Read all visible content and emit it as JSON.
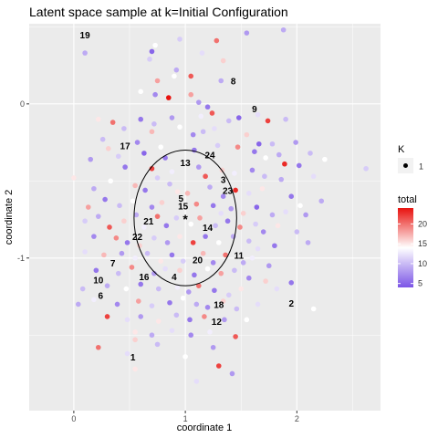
{
  "chart_data": {
    "type": "scatter",
    "title": "Latent space sample at k=Initial Configuration",
    "xlabel": "coordinate 1",
    "ylabel": "coordinate 2",
    "xlim": [
      -0.4,
      2.75
    ],
    "ylim": [
      -1.99,
      0.52
    ],
    "x_ticks": [
      0,
      1,
      2
    ],
    "x_tick_labels": [
      "0",
      "1",
      "2"
    ],
    "y_ticks": [
      0,
      -1
    ],
    "y_tick_labels": [
      "0",
      "-1"
    ],
    "grid": true,
    "ellipse": {
      "cx": 1.0,
      "cy": -0.74,
      "rx": 0.46,
      "ry": 0.44
    },
    "center_marker": {
      "x": 1.0,
      "y": -0.74,
      "label": "*"
    },
    "legend_k": {
      "title": "K",
      "entries": [
        "1"
      ]
    },
    "legend_total": {
      "title": "total",
      "ticks": [
        20,
        15,
        10,
        5
      ],
      "min": 4,
      "max": 24,
      "colors": {
        "low": "#7b55e6",
        "mid": "#ffffff",
        "high": "#e8120e"
      }
    },
    "labels": [
      {
        "text": "19",
        "x": 0.1,
        "y": 0.45
      },
      {
        "text": "8",
        "x": 1.43,
        "y": 0.15
      },
      {
        "text": "9",
        "x": 1.62,
        "y": -0.03
      },
      {
        "text": "17",
        "x": 0.46,
        "y": -0.27
      },
      {
        "text": "24",
        "x": 1.22,
        "y": -0.33
      },
      {
        "text": "13",
        "x": 1.0,
        "y": -0.38
      },
      {
        "text": "3",
        "x": 1.34,
        "y": -0.49
      },
      {
        "text": "23",
        "x": 1.38,
        "y": -0.56
      },
      {
        "text": "5",
        "x": 0.96,
        "y": -0.61
      },
      {
        "text": "15",
        "x": 0.98,
        "y": -0.66
      },
      {
        "text": "21",
        "x": 0.67,
        "y": -0.76
      },
      {
        "text": "14",
        "x": 1.2,
        "y": -0.8
      },
      {
        "text": "22",
        "x": 0.57,
        "y": -0.86
      },
      {
        "text": "11",
        "x": 1.48,
        "y": -0.98
      },
      {
        "text": "20",
        "x": 1.11,
        "y": -1.01
      },
      {
        "text": "7",
        "x": 0.35,
        "y": -1.03
      },
      {
        "text": "16",
        "x": 0.63,
        "y": -1.12
      },
      {
        "text": "4",
        "x": 0.9,
        "y": -1.12
      },
      {
        "text": "10",
        "x": 0.22,
        "y": -1.14
      },
      {
        "text": "6",
        "x": 0.24,
        "y": -1.24
      },
      {
        "text": "2",
        "x": 1.95,
        "y": -1.29
      },
      {
        "text": "18",
        "x": 1.3,
        "y": -1.3
      },
      {
        "text": "12",
        "x": 1.28,
        "y": -1.41
      },
      {
        "text": "1",
        "x": 0.53,
        "y": -1.64
      }
    ],
    "points": [
      [
        0.73,
        0.38,
        14
      ],
      [
        0.95,
        0.42,
        11
      ],
      [
        1.28,
        0.41,
        20
      ],
      [
        1.55,
        0.46,
        8
      ],
      [
        1.88,
        0.48,
        9
      ],
      [
        0.7,
        0.34,
        5
      ],
      [
        0.68,
        0.29,
        11
      ],
      [
        1.15,
        0.33,
        12
      ],
      [
        1.34,
        0.28,
        16
      ],
      [
        0.1,
        0.33,
        9
      ],
      [
        0.92,
        0.22,
        9
      ],
      [
        0.9,
        0.18,
        14
      ],
      [
        1.05,
        0.18,
        21
      ],
      [
        0.75,
        0.15,
        18
      ],
      [
        1.32,
        0.15,
        9
      ],
      [
        0.6,
        0.08,
        14
      ],
      [
        0.73,
        0.06,
        7
      ],
      [
        0.85,
        0.04,
        24
      ],
      [
        1.05,
        0.06,
        18
      ],
      [
        1.12,
        0.01,
        8
      ],
      [
        1.2,
        -0.02,
        6
      ],
      [
        1.65,
        -0.07,
        12
      ],
      [
        0.22,
        -0.1,
        15
      ],
      [
        0.35,
        -0.12,
        20
      ],
      [
        0.6,
        -0.1,
        6
      ],
      [
        0.72,
        -0.13,
        10
      ],
      [
        0.88,
        -0.09,
        8
      ],
      [
        1.14,
        -0.08,
        13
      ],
      [
        1.24,
        -0.06,
        21
      ],
      [
        1.39,
        -0.11,
        10
      ],
      [
        1.48,
        -0.09,
        5
      ],
      [
        1.74,
        -0.11,
        22
      ],
      [
        1.9,
        -0.1,
        10
      ],
      [
        0.45,
        -0.16,
        10
      ],
      [
        0.7,
        -0.18,
        17
      ],
      [
        0.95,
        -0.15,
        14
      ],
      [
        1.07,
        -0.2,
        7
      ],
      [
        1.16,
        -0.18,
        10
      ],
      [
        1.26,
        -0.16,
        12
      ],
      [
        1.55,
        -0.2,
        16
      ],
      [
        1.66,
        -0.26,
        5
      ],
      [
        1.78,
        -0.26,
        10
      ],
      [
        1.99,
        -0.25,
        8
      ],
      [
        2.12,
        -0.32,
        10
      ],
      [
        2.62,
        -0.42,
        11
      ],
      [
        0.26,
        -0.23,
        10
      ],
      [
        0.31,
        -0.29,
        16
      ],
      [
        0.57,
        -0.25,
        7
      ],
      [
        0.63,
        -0.32,
        5
      ],
      [
        0.78,
        -0.28,
        14
      ],
      [
        0.82,
        -0.35,
        6
      ],
      [
        1.08,
        -0.3,
        6
      ],
      [
        1.29,
        -0.27,
        11
      ],
      [
        1.47,
        -0.28,
        19
      ],
      [
        1.62,
        -0.31,
        6
      ],
      [
        1.72,
        -0.35,
        14
      ],
      [
        1.84,
        -0.33,
        9
      ],
      [
        1.89,
        -0.39,
        23
      ],
      [
        2.02,
        -0.4,
        6
      ],
      [
        2.25,
        -0.36,
        14
      ],
      [
        0.0,
        -0.48,
        15
      ],
      [
        0.15,
        -0.36,
        8
      ],
      [
        0.4,
        -0.34,
        11
      ],
      [
        0.46,
        -0.41,
        6
      ],
      [
        0.7,
        -0.42,
        22
      ],
      [
        0.75,
        -0.48,
        11
      ],
      [
        0.88,
        -0.44,
        13
      ],
      [
        1.12,
        -0.41,
        8
      ],
      [
        1.18,
        -0.47,
        21
      ],
      [
        1.33,
        -0.43,
        16
      ],
      [
        1.44,
        -0.45,
        13
      ],
      [
        1.6,
        -0.43,
        7
      ],
      [
        1.71,
        -0.47,
        10
      ],
      [
        1.86,
        -0.49,
        9
      ],
      [
        2.15,
        -0.47,
        12
      ],
      [
        0.18,
        -0.55,
        9
      ],
      [
        0.33,
        -0.5,
        14
      ],
      [
        0.55,
        -0.53,
        17
      ],
      [
        0.64,
        -0.56,
        6
      ],
      [
        0.86,
        -0.52,
        10
      ],
      [
        0.93,
        -0.57,
        15
      ],
      [
        1.02,
        -0.58,
        17
      ],
      [
        1.22,
        -0.54,
        9
      ],
      [
        1.34,
        -0.6,
        7
      ],
      [
        1.45,
        -0.56,
        23
      ],
      [
        1.57,
        -0.58,
        12
      ],
      [
        1.69,
        -0.55,
        15
      ],
      [
        1.95,
        -0.6,
        6
      ],
      [
        2.03,
        -0.66,
        14
      ],
      [
        2.22,
        -0.63,
        9
      ],
      [
        0.13,
        -0.67,
        18
      ],
      [
        0.28,
        -0.62,
        6
      ],
      [
        0.41,
        -0.66,
        10
      ],
      [
        0.53,
        -0.63,
        14
      ],
      [
        0.7,
        -0.67,
        7
      ],
      [
        0.79,
        -0.64,
        16
      ],
      [
        1.1,
        -0.65,
        19
      ],
      [
        1.25,
        -0.66,
        6
      ],
      [
        1.32,
        -0.71,
        12
      ],
      [
        1.41,
        -0.68,
        8
      ],
      [
        1.52,
        -0.71,
        16
      ],
      [
        1.64,
        -0.67,
        5
      ],
      [
        1.78,
        -0.72,
        9
      ],
      [
        1.9,
        -0.7,
        12
      ],
      [
        2.08,
        -0.72,
        8
      ],
      [
        0.1,
        -0.76,
        11
      ],
      [
        0.22,
        -0.73,
        9
      ],
      [
        0.32,
        -0.8,
        21
      ],
      [
        0.45,
        -0.76,
        16
      ],
      [
        0.56,
        -0.72,
        9
      ],
      [
        0.63,
        -0.8,
        13
      ],
      [
        0.75,
        -0.73,
        20
      ],
      [
        0.83,
        -0.79,
        6
      ],
      [
        0.92,
        -0.74,
        11
      ],
      [
        1.05,
        -0.78,
        14
      ],
      [
        1.13,
        -0.74,
        18
      ],
      [
        1.27,
        -0.79,
        10
      ],
      [
        1.38,
        -0.76,
        6
      ],
      [
        1.49,
        -0.8,
        19
      ],
      [
        1.63,
        -0.78,
        11
      ],
      [
        1.7,
        -0.83,
        7
      ],
      [
        1.83,
        -0.79,
        15
      ],
      [
        2.0,
        -0.83,
        10
      ],
      [
        0.18,
        -0.86,
        7
      ],
      [
        0.38,
        -0.87,
        19
      ],
      [
        0.48,
        -0.9,
        6
      ],
      [
        0.59,
        -0.92,
        16
      ],
      [
        0.72,
        -0.87,
        11
      ],
      [
        0.84,
        -0.9,
        8
      ],
      [
        0.95,
        -0.86,
        15
      ],
      [
        1.07,
        -0.9,
        22
      ],
      [
        1.18,
        -0.86,
        6
      ],
      [
        1.3,
        -0.9,
        14
      ],
      [
        1.43,
        -0.86,
        9
      ],
      [
        1.57,
        -0.89,
        10
      ],
      [
        1.65,
        -0.94,
        12
      ],
      [
        1.8,
        -0.92,
        6
      ],
      [
        2.1,
        -0.9,
        9
      ],
      [
        0.1,
        -0.96,
        12
      ],
      [
        0.27,
        -0.98,
        17
      ],
      [
        0.43,
        -0.97,
        8
      ],
      [
        0.55,
        -1.0,
        13
      ],
      [
        0.66,
        -0.97,
        10
      ],
      [
        0.78,
        -1.02,
        15
      ],
      [
        0.88,
        -0.98,
        6
      ],
      [
        0.98,
        -1.02,
        11
      ],
      [
        1.16,
        -0.97,
        17
      ],
      [
        1.25,
        -1.03,
        7
      ],
      [
        1.36,
        -0.98,
        20
      ],
      [
        1.52,
        -1.03,
        9
      ],
      [
        1.6,
        -1.0,
        13
      ],
      [
        1.75,
        -1.05,
        8
      ],
      [
        0.2,
        -1.08,
        6
      ],
      [
        0.4,
        -1.1,
        10
      ],
      [
        0.52,
        -1.06,
        19
      ],
      [
        0.72,
        -1.1,
        8
      ],
      [
        0.82,
        -1.07,
        12
      ],
      [
        0.95,
        -1.08,
        16
      ],
      [
        1.08,
        -1.11,
        6
      ],
      [
        1.2,
        -1.07,
        14
      ],
      [
        1.32,
        -1.1,
        18
      ],
      [
        1.44,
        -1.08,
        10
      ],
      [
        1.57,
        -1.13,
        7
      ],
      [
        1.72,
        -1.15,
        16
      ],
      [
        0.08,
        -1.2,
        10
      ],
      [
        0.3,
        -1.18,
        9
      ],
      [
        0.47,
        -1.2,
        14
      ],
      [
        0.6,
        -1.17,
        6
      ],
      [
        0.76,
        -1.2,
        10
      ],
      [
        0.93,
        -1.19,
        13
      ],
      [
        1.03,
        -1.22,
        8
      ],
      [
        1.12,
        -1.18,
        20
      ],
      [
        1.26,
        -1.21,
        6
      ],
      [
        1.39,
        -1.24,
        11
      ],
      [
        1.5,
        -1.2,
        15
      ],
      [
        1.82,
        -1.2,
        12
      ],
      [
        1.95,
        -1.16,
        6
      ],
      [
        0.04,
        -1.3,
        9
      ],
      [
        0.18,
        -1.27,
        13
      ],
      [
        0.39,
        -1.3,
        7
      ],
      [
        0.58,
        -1.28,
        18
      ],
      [
        0.7,
        -1.31,
        11
      ],
      [
        0.86,
        -1.29,
        6
      ],
      [
        0.98,
        -1.26,
        14
      ],
      [
        1.1,
        -1.3,
        9
      ],
      [
        1.2,
        -1.32,
        7
      ],
      [
        1.34,
        -1.28,
        16
      ],
      [
        1.46,
        -1.33,
        10
      ],
      [
        1.65,
        -1.3,
        12
      ],
      [
        2.15,
        -1.33,
        14
      ],
      [
        0.3,
        -1.38,
        22
      ],
      [
        0.48,
        -1.4,
        12
      ],
      [
        0.6,
        -1.38,
        8
      ],
      [
        0.76,
        -1.41,
        15
      ],
      [
        0.92,
        -1.37,
        10
      ],
      [
        1.04,
        -1.4,
        6
      ],
      [
        1.17,
        -1.38,
        19
      ],
      [
        1.35,
        -1.4,
        8
      ],
      [
        1.55,
        -1.4,
        14
      ],
      [
        0.55,
        -1.48,
        15
      ],
      [
        0.7,
        -1.5,
        9
      ],
      [
        0.88,
        -1.47,
        12
      ],
      [
        1.05,
        -1.5,
        7
      ],
      [
        1.22,
        -1.48,
        13
      ],
      [
        1.45,
        -1.51,
        21
      ],
      [
        0.22,
        -1.58,
        20
      ],
      [
        0.55,
        -1.53,
        16
      ],
      [
        0.75,
        -1.56,
        10
      ],
      [
        1.25,
        -1.58,
        8
      ],
      [
        0.48,
        -1.62,
        12
      ],
      [
        1.0,
        -1.64,
        14
      ],
      [
        1.3,
        -1.7,
        22
      ],
      [
        0.55,
        -1.72,
        15
      ],
      [
        1.42,
        -1.75,
        8
      ],
      [
        1.1,
        -1.8,
        12
      ]
    ]
  }
}
